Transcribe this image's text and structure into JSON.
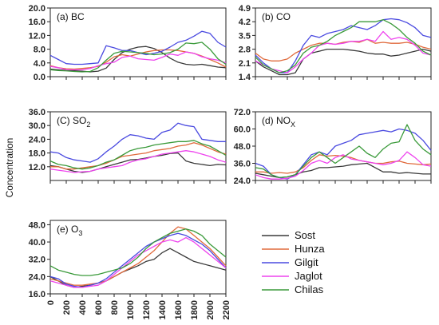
{
  "figure": {
    "ylabel": "Concentration",
    "x_tick_labels": [
      "0",
      "200",
      "400",
      "600",
      "800",
      "1000",
      "1200",
      "1400",
      "1600",
      "1800",
      "2000",
      "2200"
    ]
  },
  "legend": {
    "entries": [
      {
        "name": "Sost",
        "color": "#3a3a3a"
      },
      {
        "name": "Hunza",
        "color": "#e06a3c"
      },
      {
        "name": "Gilgit",
        "color": "#4a4ae0"
      },
      {
        "name": "Jaglot",
        "color": "#ee44ee"
      },
      {
        "name": "Chilas",
        "color": "#3a9a3a"
      }
    ]
  },
  "chart_data": [
    {
      "type": "line",
      "title": "(a) BC",
      "ylim": [
        0,
        20
      ],
      "yticks": [
        0.0,
        4.0,
        8.0,
        12.0,
        16.0,
        20.0
      ],
      "ytick_labels": [
        "0.0",
        "4.0",
        "8.0",
        "12.0",
        "16.0",
        "20.0"
      ],
      "x": [
        0,
        100,
        200,
        300,
        400,
        500,
        600,
        700,
        800,
        900,
        1000,
        1100,
        1200,
        1300,
        1400,
        1500,
        1600,
        1700,
        1800,
        1900,
        2000,
        2100,
        2200
      ],
      "series": [
        {
          "name": "Sost",
          "color": "#3a3a3a",
          "values": [
            2.2,
            2.0,
            1.8,
            1.7,
            1.6,
            1.4,
            1.6,
            2.5,
            5.0,
            7.0,
            8.0,
            8.6,
            8.8,
            8.2,
            7.0,
            5.4,
            4.2,
            3.6,
            3.4,
            3.6,
            3.2,
            2.8,
            2.6
          ]
        },
        {
          "name": "Hunza",
          "color": "#e06a3c",
          "values": [
            3.2,
            2.6,
            2.3,
            2.2,
            2.4,
            2.6,
            3.0,
            4.2,
            5.8,
            6.4,
            6.0,
            6.6,
            7.2,
            7.6,
            7.8,
            7.8,
            7.6,
            7.2,
            6.8,
            6.0,
            5.0,
            4.0,
            2.8
          ]
        },
        {
          "name": "Gilgit",
          "color": "#4a4ae0",
          "values": [
            6.2,
            5.0,
            3.8,
            3.6,
            3.6,
            3.8,
            4.0,
            9.0,
            8.4,
            7.6,
            7.6,
            7.0,
            6.4,
            6.8,
            7.4,
            8.6,
            10.0,
            10.6,
            11.8,
            13.2,
            12.6,
            10.0,
            8.6
          ]
        },
        {
          "name": "Jaglot",
          "color": "#ee44ee",
          "values": [
            3.0,
            2.6,
            2.0,
            2.0,
            2.0,
            2.4,
            3.2,
            3.8,
            4.2,
            5.6,
            6.0,
            5.2,
            5.0,
            4.8,
            5.6,
            6.6,
            6.2,
            7.2,
            6.8,
            5.8,
            5.2,
            4.8,
            4.0
          ]
        },
        {
          "name": "Chilas",
          "color": "#3a9a3a",
          "values": [
            2.0,
            1.8,
            1.7,
            1.5,
            1.4,
            1.5,
            2.6,
            4.8,
            6.8,
            7.4,
            7.2,
            7.0,
            6.8,
            6.4,
            6.6,
            7.0,
            8.0,
            9.8,
            9.6,
            10.0,
            8.0,
            5.2,
            3.6
          ]
        }
      ]
    },
    {
      "type": "line",
      "title": "(b) CO",
      "ylim": [
        1.4,
        4.9
      ],
      "yticks": [
        1.4,
        2.1,
        2.8,
        3.5,
        4.2,
        4.9
      ],
      "ytick_labels": [
        "1.4",
        "2.1",
        "2.8",
        "3.5",
        "4.2",
        "4.9"
      ],
      "x": [
        0,
        100,
        200,
        300,
        400,
        500,
        600,
        700,
        800,
        900,
        1000,
        1100,
        1200,
        1300,
        1400,
        1500,
        1600,
        1700,
        1800,
        1900,
        2000,
        2100,
        2200
      ],
      "series": [
        {
          "name": "Sost",
          "color": "#3a3a3a",
          "values": [
            2.2,
            1.9,
            1.7,
            1.5,
            1.5,
            1.6,
            2.3,
            2.6,
            2.7,
            2.8,
            2.8,
            2.8,
            2.75,
            2.7,
            2.6,
            2.55,
            2.55,
            2.45,
            2.5,
            2.6,
            2.7,
            2.8,
            2.7
          ]
        },
        {
          "name": "Hunza",
          "color": "#e06a3c",
          "values": [
            2.6,
            2.3,
            2.2,
            2.2,
            2.3,
            2.6,
            2.8,
            3.0,
            3.1,
            3.1,
            3.05,
            3.15,
            3.2,
            3.15,
            3.3,
            3.1,
            3.15,
            3.1,
            3.1,
            3.15,
            3.05,
            2.9,
            2.8
          ]
        },
        {
          "name": "Gilgit",
          "color": "#4a4ae0",
          "values": [
            2.5,
            2.1,
            1.8,
            1.6,
            1.6,
            2.2,
            3.0,
            3.5,
            3.4,
            3.6,
            3.7,
            3.8,
            4.0,
            3.9,
            3.8,
            4.0,
            4.3,
            4.35,
            4.3,
            4.15,
            3.9,
            3.5,
            3.4
          ]
        },
        {
          "name": "Jaglot",
          "color": "#ee44ee",
          "values": [
            2.2,
            2.0,
            1.8,
            1.7,
            1.6,
            1.9,
            2.3,
            2.6,
            3.0,
            3.1,
            3.05,
            3.1,
            3.2,
            3.2,
            3.3,
            3.2,
            3.7,
            3.3,
            3.4,
            3.3,
            3.0,
            2.6,
            2.5
          ]
        },
        {
          "name": "Chilas",
          "color": "#3a9a3a",
          "values": [
            2.4,
            2.0,
            1.8,
            1.6,
            1.7,
            2.0,
            2.6,
            2.9,
            3.0,
            3.2,
            3.5,
            3.7,
            3.9,
            4.2,
            4.2,
            4.2,
            4.3,
            4.1,
            3.8,
            3.4,
            3.1,
            2.7,
            2.5
          ]
        }
      ]
    },
    {
      "type": "line",
      "title": "(C) SO2",
      "ylim": [
        6.0,
        36.0
      ],
      "yticks": [
        12.0,
        18.0,
        24.0,
        30.0,
        36.0
      ],
      "ytick_labels": [
        "12.0",
        "18.0",
        "24.0",
        "30.0",
        "36.0"
      ],
      "x": [
        0,
        100,
        200,
        300,
        400,
        500,
        600,
        700,
        800,
        900,
        1000,
        1100,
        1200,
        1300,
        1400,
        1500,
        1600,
        1700,
        1800,
        1900,
        2000,
        2100,
        2200
      ],
      "series": [
        {
          "name": "Sost",
          "color": "#3a3a3a",
          "values": [
            12.5,
            12.0,
            11.0,
            10.0,
            9.5,
            10.0,
            11.0,
            12.0,
            13.0,
            14.0,
            15.0,
            15.2,
            15.8,
            16.5,
            17.0,
            17.8,
            18.0,
            14.5,
            13.5,
            13.0,
            12.5,
            13.0,
            12.8
          ]
        },
        {
          "name": "Hunza",
          "color": "#e06a3c",
          "values": [
            12.0,
            12.0,
            11.0,
            11.0,
            11.5,
            12.0,
            12.5,
            13.5,
            15.0,
            16.5,
            17.0,
            17.5,
            18.0,
            19.0,
            19.5,
            20.0,
            21.0,
            21.5,
            22.5,
            21.5,
            20.0,
            18.5,
            17.5
          ]
        },
        {
          "name": "Gilgit",
          "color": "#4a4ae0",
          "values": [
            18.5,
            18.0,
            16.0,
            15.0,
            14.5,
            14.0,
            15.5,
            18.5,
            21.0,
            24.0,
            26.0,
            25.5,
            24.5,
            24.0,
            27.0,
            28.0,
            31.0,
            30.0,
            29.5,
            24.0,
            23.5,
            23.0,
            23.0
          ]
        },
        {
          "name": "Jaglot",
          "color": "#ee44ee",
          "values": [
            11.0,
            10.5,
            10.0,
            9.5,
            9.8,
            10.0,
            11.0,
            11.5,
            12.0,
            12.5,
            14.0,
            15.0,
            15.5,
            16.5,
            17.5,
            18.0,
            18.5,
            19.0,
            18.5,
            17.5,
            16.5,
            15.0,
            14.0
          ]
        },
        {
          "name": "Chilas",
          "color": "#3a9a3a",
          "values": [
            14.5,
            13.0,
            12.5,
            11.5,
            11.0,
            11.5,
            12.5,
            14.0,
            15.0,
            17.0,
            19.0,
            20.0,
            20.5,
            21.5,
            22.0,
            22.5,
            23.0,
            23.0,
            23.5,
            22.0,
            21.0,
            19.0,
            17.0
          ]
        }
      ]
    },
    {
      "type": "line",
      "title": "(d) NOX",
      "ylim": [
        24.0,
        72.0
      ],
      "yticks": [
        24.0,
        36.0,
        48.0,
        60.0,
        72.0
      ],
      "ytick_labels": [
        "24.0",
        "36.0",
        "48.0",
        "60.0",
        "72.0"
      ],
      "x": [
        0,
        100,
        200,
        300,
        400,
        500,
        600,
        700,
        800,
        900,
        1000,
        1100,
        1200,
        1300,
        1400,
        1500,
        1600,
        1700,
        1800,
        1900,
        2000,
        2100,
        2200
      ],
      "series": [
        {
          "name": "Sost",
          "color": "#3a3a3a",
          "values": [
            29.0,
            28.0,
            27.0,
            26.0,
            26.5,
            28.0,
            30.0,
            31.0,
            33.0,
            33.0,
            33.5,
            34.0,
            35.0,
            35.5,
            36.0,
            33.0,
            30.0,
            30.0,
            29.0,
            29.5,
            29.0,
            28.5,
            28.5
          ]
        },
        {
          "name": "Hunza",
          "color": "#e06a3c",
          "values": [
            30.0,
            30.0,
            29.0,
            29.5,
            29.0,
            30.0,
            33.0,
            38.0,
            42.0,
            41.0,
            41.5,
            41.0,
            40.0,
            38.0,
            37.0,
            36.0,
            36.0,
            37.0,
            37.5,
            36.0,
            35.5,
            35.0,
            35.5
          ]
        },
        {
          "name": "Gilgit",
          "color": "#4a4ae0",
          "values": [
            36.0,
            34.0,
            28.0,
            26.0,
            25.0,
            28.0,
            35.0,
            42.0,
            44.0,
            42.0,
            48.0,
            50.0,
            52.0,
            56.0,
            57.0,
            58.0,
            59.0,
            58.0,
            60.0,
            59.0,
            57.0,
            52.0,
            45.0
          ]
        },
        {
          "name": "Jaglot",
          "color": "#ee44ee",
          "values": [
            28.0,
            26.0,
            25.0,
            25.0,
            25.5,
            27.0,
            31.0,
            36.0,
            38.0,
            36.0,
            40.0,
            42.0,
            39.0,
            38.0,
            37.0,
            36.0,
            35.0,
            36.0,
            38.0,
            44.0,
            40.0,
            35.0,
            34.0
          ]
        },
        {
          "name": "Chilas",
          "color": "#3a9a3a",
          "values": [
            33.0,
            32.0,
            28.0,
            26.0,
            26.5,
            28.0,
            34.0,
            40.0,
            44.0,
            40.0,
            36.0,
            40.0,
            44.0,
            48.0,
            43.0,
            40.0,
            46.0,
            50.0,
            51.0,
            63.0,
            52.0,
            46.0,
            42.0
          ]
        }
      ]
    },
    {
      "type": "line",
      "title": "(e) O3",
      "ylim": [
        16.0,
        50.0
      ],
      "yticks": [
        16.0,
        24.0,
        32.0,
        40.0,
        48.0
      ],
      "ytick_labels": [
        "16.0",
        "24.0",
        "32.0",
        "40.0",
        "48.0"
      ],
      "x": [
        0,
        100,
        200,
        300,
        400,
        500,
        600,
        700,
        800,
        900,
        1000,
        1100,
        1200,
        1300,
        1400,
        1500,
        1600,
        1700,
        1800,
        1900,
        2000,
        2100,
        2200
      ],
      "series": [
        {
          "name": "Sost",
          "color": "#3a3a3a",
          "values": [
            24.0,
            22.0,
            20.0,
            19.0,
            19.5,
            20.0,
            21.0,
            22.0,
            24.0,
            26.0,
            27.5,
            29.0,
            31.0,
            32.0,
            35.0,
            37.0,
            35.0,
            33.0,
            31.0,
            30.0,
            29.0,
            28.0,
            27.0
          ]
        },
        {
          "name": "Hunza",
          "color": "#e06a3c",
          "values": [
            23.0,
            22.0,
            21.0,
            20.0,
            20.0,
            20.5,
            21.0,
            22.0,
            24.0,
            26.0,
            28.0,
            30.0,
            33.0,
            36.0,
            40.0,
            44.0,
            47.0,
            46.0,
            43.0,
            40.0,
            37.0,
            33.0,
            29.0
          ]
        },
        {
          "name": "Gilgit",
          "color": "#4a4ae0",
          "values": [
            24.0,
            23.0,
            20.5,
            19.5,
            19.0,
            20.0,
            21.0,
            23.0,
            26.0,
            29.0,
            32.0,
            35.0,
            38.0,
            40.0,
            41.5,
            43.0,
            44.0,
            43.0,
            41.0,
            39.0,
            36.0,
            32.0,
            28.0
          ]
        },
        {
          "name": "Jaglot",
          "color": "#ee44ee",
          "values": [
            22.0,
            21.0,
            20.0,
            19.0,
            19.0,
            19.5,
            20.0,
            22.0,
            25.0,
            28.0,
            31.0,
            34.0,
            36.0,
            38.0,
            40.0,
            41.0,
            40.0,
            42.0,
            40.0,
            37.0,
            34.0,
            31.0,
            28.0
          ]
        },
        {
          "name": "Chilas",
          "color": "#3a9a3a",
          "values": [
            29.0,
            27.0,
            26.0,
            25.0,
            24.5,
            24.5,
            25.0,
            26.0,
            27.0,
            28.0,
            30.0,
            33.0,
            37.0,
            40.0,
            42.0,
            44.0,
            45.0,
            46.0,
            45.0,
            43.0,
            39.0,
            36.0,
            33.0
          ]
        }
      ]
    }
  ]
}
